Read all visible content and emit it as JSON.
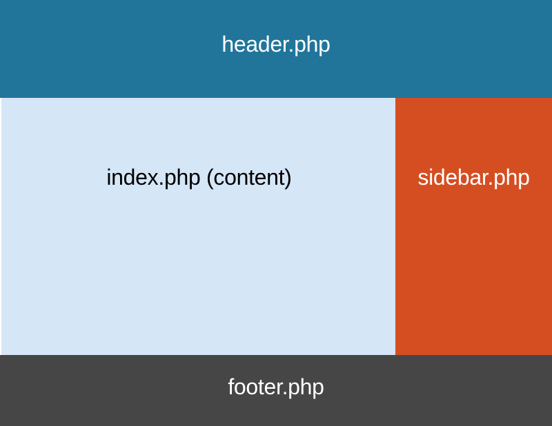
{
  "colors": {
    "header_bg": "#21759b",
    "content_bg": "#d5e6f7",
    "sidebar_bg": "#d54e21",
    "footer_bg": "#464646",
    "light_text": "#ffffff",
    "dark_text": "#000000"
  },
  "regions": {
    "header": {
      "label": "header.php"
    },
    "content": {
      "label": "index.php (content)"
    },
    "sidebar": {
      "label": "sidebar.php"
    },
    "footer": {
      "label": "footer.php"
    }
  }
}
